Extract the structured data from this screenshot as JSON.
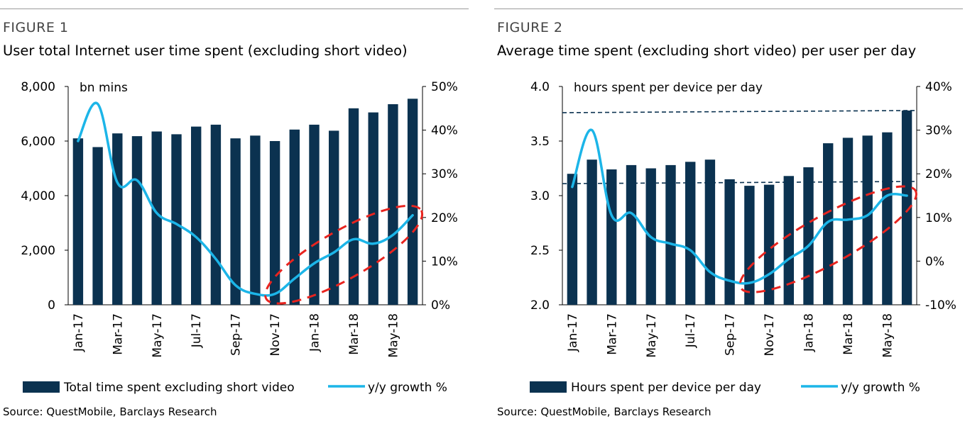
{
  "figures": [
    {
      "label": "FIGURE 1",
      "title": "User total Internet user time spent (excluding short video)",
      "source": "Source: QuestMobile, Barclays Research"
    },
    {
      "label": "FIGURE 2",
      "title": "Average time spent (excluding short video) per user per day",
      "source": "Source: QuestMobile, Barclays Research"
    }
  ],
  "colors": {
    "bar": "#0b3250",
    "line": "#1cb5e8",
    "highlight": "#e8241f",
    "reference_line": "#0b3250"
  },
  "chart_data": [
    {
      "type": "bar",
      "combo": "bar+line",
      "unit_annotation": "bn mins",
      "categories": [
        "Jan-17",
        "Feb-17",
        "Mar-17",
        "Apr-17",
        "May-17",
        "Jun-17",
        "Jul-17",
        "Aug-17",
        "Sep-17",
        "Oct-17",
        "Nov-17",
        "Dec-17",
        "Jan-18",
        "Feb-18",
        "Mar-18",
        "Apr-18",
        "May-18",
        "Jun-18"
      ],
      "x_tick_labels": [
        "Jan-17",
        "Mar-17",
        "May-17",
        "Jul-17",
        "Sep-17",
        "Nov-17",
        "Jan-18",
        "Mar-18",
        "May-18"
      ],
      "series": [
        {
          "name": "Total time spent excluding short video",
          "type": "bar",
          "axis": "left",
          "values": [
            6100,
            5780,
            6280,
            6180,
            6350,
            6250,
            6530,
            6600,
            6100,
            6200,
            6000,
            6420,
            6600,
            6380,
            7200,
            7050,
            7350,
            7550
          ]
        },
        {
          "name": "y/y growth %",
          "type": "line",
          "axis": "right",
          "values": [
            37.5,
            46,
            28,
            28.5,
            21,
            18.5,
            15.5,
            10.5,
            4.5,
            2.5,
            2.5,
            6,
            9.5,
            12,
            15,
            14,
            16,
            20.5
          ]
        }
      ],
      "left_axis": {
        "min": 0,
        "max": 8000,
        "ticks": [
          0,
          2000,
          4000,
          6000,
          8000
        ],
        "tick_labels": [
          "0",
          "2,000",
          "4,000",
          "6,000",
          "8,000"
        ]
      },
      "right_axis": {
        "min": 0,
        "max": 50,
        "ticks": [
          0,
          10,
          20,
          30,
          40,
          50
        ],
        "tick_labels": [
          "0%",
          "10%",
          "20%",
          "30%",
          "40%",
          "50%"
        ]
      },
      "reference_lines": [],
      "highlight_ellipse": {
        "x_from": "Nov-17",
        "x_to": "Jun-18",
        "note": "dashed red ellipse around recent growth rebound"
      },
      "legend": {
        "position": "bottom",
        "entries": [
          "Total time spent excluding short video",
          "y/y growth %"
        ]
      },
      "grid": false
    },
    {
      "type": "bar",
      "combo": "bar+line",
      "unit_annotation": "hours spent per device per day",
      "categories": [
        "Jan-17",
        "Feb-17",
        "Mar-17",
        "Apr-17",
        "May-17",
        "Jun-17",
        "Jul-17",
        "Aug-17",
        "Sep-17",
        "Oct-17",
        "Nov-17",
        "Dec-17",
        "Jan-18",
        "Feb-18",
        "Mar-18",
        "Apr-18",
        "May-18",
        "Jun-18"
      ],
      "x_tick_labels": [
        "Jan-17",
        "Mar-17",
        "May-17",
        "Jul-17",
        "Sep-17",
        "Nov-17",
        "Jan-18",
        "Mar-18",
        "May-18"
      ],
      "series": [
        {
          "name": "Hours spent per device per day",
          "type": "bar",
          "axis": "left",
          "values": [
            3.2,
            3.33,
            3.24,
            3.28,
            3.25,
            3.28,
            3.31,
            3.33,
            3.15,
            3.09,
            3.1,
            3.18,
            3.26,
            3.48,
            3.53,
            3.55,
            3.58,
            3.78
          ]
        },
        {
          "name": "y/y growth %",
          "type": "line",
          "axis": "right",
          "values": [
            17,
            30,
            10.5,
            11,
            5.5,
            4,
            2.5,
            -2.5,
            -4.5,
            -5,
            -3,
            0.5,
            3.5,
            9,
            9.5,
            10.5,
            15,
            15
          ]
        }
      ],
      "left_axis": {
        "min": 2.0,
        "max": 4.0,
        "ticks": [
          2.0,
          2.5,
          3.0,
          3.5,
          4.0
        ],
        "tick_labels": [
          "2.0",
          "2.5",
          "3.0",
          "3.5",
          "4.0"
        ]
      },
      "right_axis": {
        "min": -10,
        "max": 40,
        "ticks": [
          -10,
          0,
          10,
          20,
          30,
          40
        ],
        "tick_labels": [
          "-10%",
          "0%",
          "10%",
          "20%",
          "30%",
          "40%"
        ]
      },
      "reference_lines": [
        {
          "axis": "left",
          "y_start": 3.76,
          "y_end": 3.78,
          "style": "dashed"
        },
        {
          "axis": "left",
          "y_start": 3.11,
          "y_end": 3.13,
          "style": "dashed"
        }
      ],
      "highlight_ellipse": {
        "x_from": "Oct-17",
        "x_to": "Jun-18",
        "note": "dashed red ellipse around recent growth rebound"
      },
      "legend": {
        "position": "bottom",
        "entries": [
          "Hours spent per device per day",
          "y/y growth %"
        ]
      },
      "grid": false
    }
  ]
}
